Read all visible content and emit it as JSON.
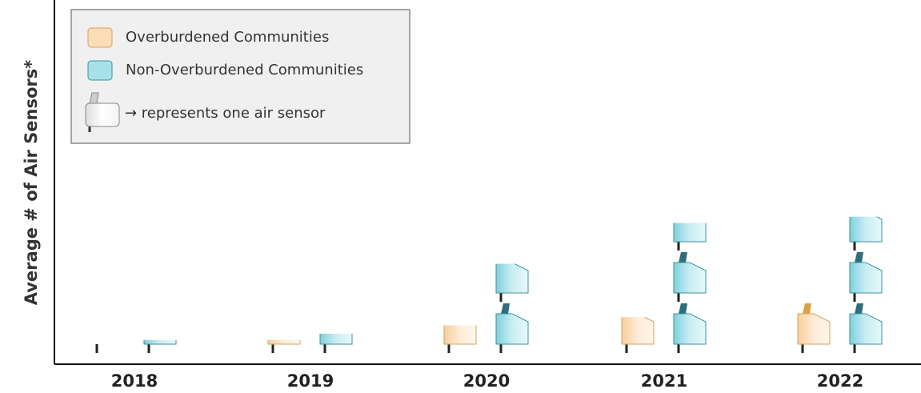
{
  "chart_data": {
    "type": "pictograph",
    "y_label": "Average # of Air Sensors*",
    "categories": [
      "2018",
      "2019",
      "2020",
      "2021",
      "2022"
    ],
    "series": [
      {
        "name": "Overburdened Communities",
        "color": "#fbdcb8",
        "values": [
          0,
          0.1,
          0.45,
          0.65,
          1.0
        ]
      },
      {
        "name": "Non-Overburdened Communities",
        "color": "#a8e0e8",
        "values": [
          0.1,
          0.25,
          1.7,
          2.45,
          2.6
        ]
      }
    ],
    "icon_note": "→ represents one air sensor"
  }
}
